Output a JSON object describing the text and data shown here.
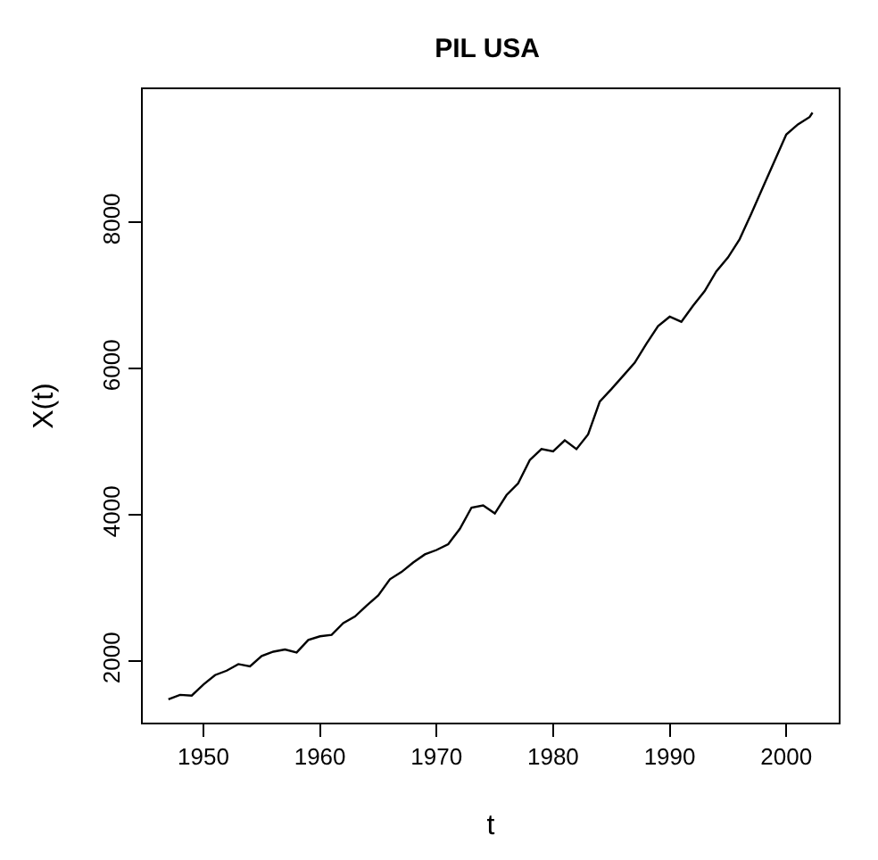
{
  "chart_data": {
    "type": "line",
    "title": "PIL USA",
    "xlabel": "t",
    "ylabel": "X(t)",
    "x": [
      1947,
      1948,
      1949,
      1950,
      1951,
      1952,
      1953,
      1954,
      1955,
      1956,
      1957,
      1958,
      1959,
      1960,
      1961,
      1962,
      1963,
      1964,
      1965,
      1966,
      1967,
      1968,
      1969,
      1970,
      1971,
      1972,
      1973,
      1974,
      1975,
      1976,
      1977,
      1978,
      1979,
      1980,
      1981,
      1982,
      1983,
      1984,
      1985,
      1986,
      1987,
      1988,
      1989,
      1990,
      1991,
      1992,
      1993,
      1994,
      1995,
      1996,
      1997,
      1998,
      1999,
      2000,
      2001,
      2002,
      2002.25
    ],
    "series": [
      {
        "color": "#000000",
        "values": [
          1480,
          1540,
          1530,
          1680,
          1810,
          1870,
          1960,
          1930,
          2070,
          2130,
          2160,
          2120,
          2290,
          2340,
          2360,
          2520,
          2610,
          2760,
          2900,
          3120,
          3220,
          3350,
          3460,
          3520,
          3600,
          3810,
          4100,
          4130,
          4020,
          4270,
          4430,
          4750,
          4900,
          4870,
          5020,
          4900,
          5100,
          5550,
          5720,
          5900,
          6080,
          6340,
          6580,
          6710,
          6640,
          6860,
          7060,
          7330,
          7520,
          7770,
          8120,
          8480,
          8840,
          9200,
          9340,
          9440,
          9500
        ]
      }
    ],
    "xlim": [
      1944.8,
      2004.5
    ],
    "ylim": [
      1160,
      9820
    ],
    "xticks": [
      1950,
      1960,
      1970,
      1980,
      1990,
      2000
    ],
    "yticks": [
      2000,
      4000,
      6000,
      8000
    ],
    "grid": false,
    "marker": "none",
    "line_style": "solid"
  }
}
